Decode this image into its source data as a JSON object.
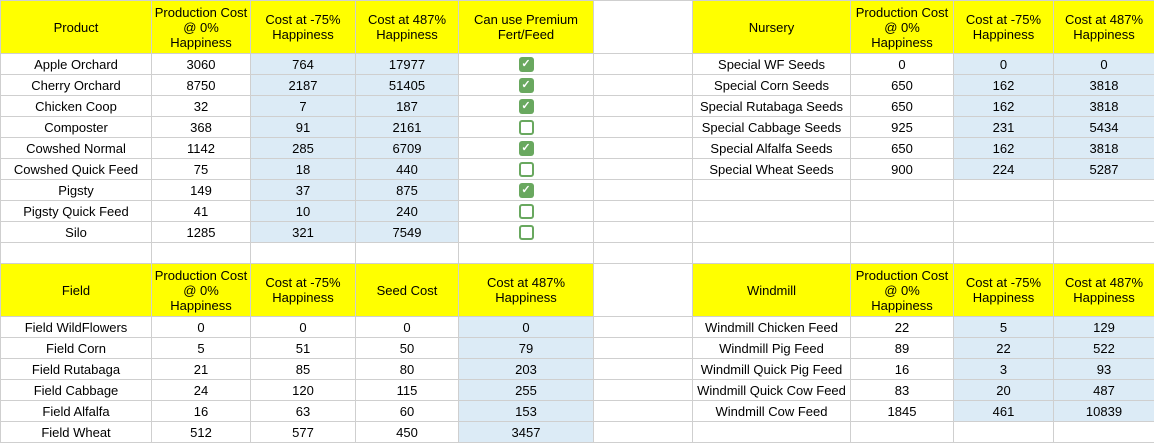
{
  "colors": {
    "header_bg": "#ffff00",
    "shade_bg": "#dcebf6",
    "checkbox_green": "#69a85f",
    "gridline": "#cfcfcf",
    "text": "#000000"
  },
  "icons": {
    "checkmark": "✓"
  },
  "product_table": {
    "headers": [
      "Product",
      "Production Cost\n@ 0%\nHappiness",
      "Cost at -75%\nHappiness",
      "Cost at 487%\nHappiness",
      "Can use Premium\nFert/Feed"
    ],
    "rows": [
      {
        "name": "Apple Orchard",
        "cost0": 3060,
        "cost75": 764,
        "cost487": 17977,
        "premium": true
      },
      {
        "name": "Cherry Orchard",
        "cost0": 8750,
        "cost75": 2187,
        "cost487": 51405,
        "premium": true
      },
      {
        "name": "Chicken Coop",
        "cost0": 32,
        "cost75": 7,
        "cost487": 187,
        "premium": true
      },
      {
        "name": "Composter",
        "cost0": 368,
        "cost75": 91,
        "cost487": 2161,
        "premium": false
      },
      {
        "name": "Cowshed Normal",
        "cost0": 1142,
        "cost75": 285,
        "cost487": 6709,
        "premium": true
      },
      {
        "name": "Cowshed Quick Feed",
        "cost0": 75,
        "cost75": 18,
        "cost487": 440,
        "premium": false
      },
      {
        "name": "Pigsty",
        "cost0": 149,
        "cost75": 37,
        "cost487": 875,
        "premium": true
      },
      {
        "name": "Pigsty Quick Feed",
        "cost0": 41,
        "cost75": 10,
        "cost487": 240,
        "premium": false
      },
      {
        "name": "Silo",
        "cost0": 1285,
        "cost75": 321,
        "cost487": 7549,
        "premium": false
      }
    ]
  },
  "nursery_table": {
    "headers": [
      "Nursery",
      "Production Cost\n@ 0%\nHappiness",
      "Cost at -75%\nHappiness",
      "Cost at 487%\nHappiness"
    ],
    "rows": [
      {
        "name": "Special WF Seeds",
        "cost0": 0,
        "cost75": 0,
        "cost487": 0
      },
      {
        "name": "Special Corn Seeds",
        "cost0": 650,
        "cost75": 162,
        "cost487": 3818
      },
      {
        "name": "Special Rutabaga Seeds",
        "cost0": 650,
        "cost75": 162,
        "cost487": 3818
      },
      {
        "name": "Special Cabbage Seeds",
        "cost0": 925,
        "cost75": 231,
        "cost487": 5434
      },
      {
        "name": "Special Alfalfa Seeds",
        "cost0": 650,
        "cost75": 162,
        "cost487": 3818
      },
      {
        "name": "Special Wheat Seeds",
        "cost0": 900,
        "cost75": 224,
        "cost487": 5287
      }
    ]
  },
  "field_table": {
    "headers": [
      "Field",
      "Production Cost\n@ 0%\nHappiness",
      "Cost at -75%\nHappiness",
      "Seed Cost",
      "Cost at 487%\nHappiness"
    ],
    "rows": [
      {
        "name": "Field WildFlowers",
        "cost0": 0,
        "cost75": 0,
        "seed": 0,
        "cost487": 0
      },
      {
        "name": "Field Corn",
        "cost0": 5,
        "cost75": 51,
        "seed": 50,
        "cost487": 79
      },
      {
        "name": "Field Rutabaga",
        "cost0": 21,
        "cost75": 85,
        "seed": 80,
        "cost487": 203
      },
      {
        "name": "Field Cabbage",
        "cost0": 24,
        "cost75": 120,
        "seed": 115,
        "cost487": 255
      },
      {
        "name": "Field Alfalfa",
        "cost0": 16,
        "cost75": 63,
        "seed": 60,
        "cost487": 153
      },
      {
        "name": "Field Wheat",
        "cost0": 512,
        "cost75": 577,
        "seed": 450,
        "cost487": 3457
      }
    ]
  },
  "windmill_table": {
    "headers": [
      "Windmill",
      "Production Cost\n@ 0%\nHappiness",
      "Cost at -75%\nHappiness",
      "Cost at 487%\nHappiness"
    ],
    "rows": [
      {
        "name": "Windmill Chicken Feed",
        "cost0": 22,
        "cost75": 5,
        "cost487": 129
      },
      {
        "name": "Windmill Pig Feed",
        "cost0": 89,
        "cost75": 22,
        "cost487": 522
      },
      {
        "name": "Windmill Quick Pig Feed",
        "cost0": 16,
        "cost75": 3,
        "cost487": 93
      },
      {
        "name": "Windmill Quick Cow Feed",
        "cost0": 83,
        "cost75": 20,
        "cost487": 487
      },
      {
        "name": "Windmill Cow Feed",
        "cost0": 1845,
        "cost75": 461,
        "cost487": 10839
      }
    ]
  }
}
